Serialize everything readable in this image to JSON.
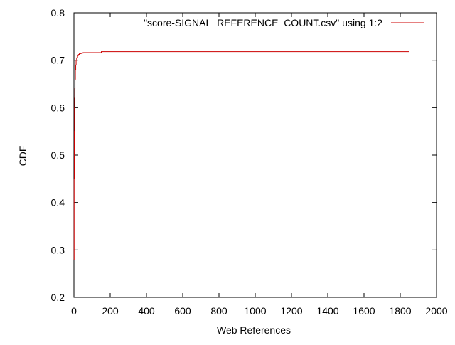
{
  "chart_data": {
    "type": "line",
    "title": "",
    "xlabel": "Web References",
    "ylabel": "CDF",
    "xlim": [
      0,
      2000
    ],
    "ylim": [
      0.2,
      0.8
    ],
    "x_ticks": [
      0,
      200,
      400,
      600,
      800,
      1000,
      1200,
      1400,
      1600,
      1800,
      2000
    ],
    "y_ticks": [
      0.2,
      0.3,
      0.4,
      0.5,
      0.6,
      0.7,
      0.8
    ],
    "y_tick_labels": [
      "0.2",
      "0.3",
      "0.4",
      "0.5",
      "0.6",
      "0.7",
      "0.8"
    ],
    "grid": false,
    "legend_position": "top-right",
    "series": [
      {
        "name": "\"score-SIGNAL_REFERENCE_COUNT.csv\" using 1:2",
        "color": "#cc0000",
        "x": [
          0,
          1,
          2,
          3,
          4,
          5,
          6,
          8,
          10,
          12,
          15,
          20,
          25,
          30,
          40,
          50,
          80,
          150,
          151,
          1850
        ],
        "y": [
          0.28,
          0.45,
          0.55,
          0.6,
          0.62,
          0.64,
          0.66,
          0.68,
          0.69,
          0.7,
          0.705,
          0.71,
          0.712,
          0.714,
          0.715,
          0.716,
          0.716,
          0.716,
          0.718,
          0.718
        ]
      }
    ]
  }
}
